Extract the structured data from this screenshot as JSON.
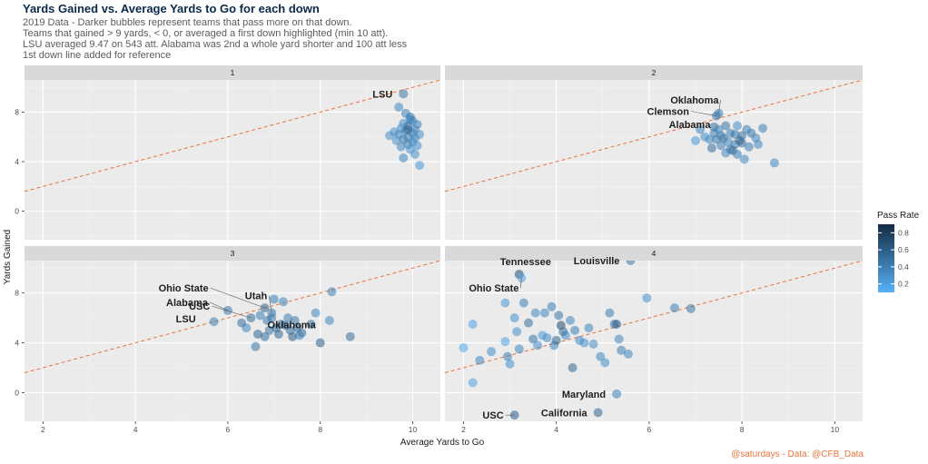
{
  "title": "Yards Gained vs. Average Yards to Go for each down",
  "subtitle": [
    "2019 Data - Darker bubbles represent teams that pass more on that down.",
    "Teams that gained > 9 yards, < 0, or averaged a first down highlighted (min 10 att).",
    "LSU averaged 9.47 on 543 att. Alabama was 2nd a whole yard shorter and 100 att less",
    "1st down line added for reference"
  ],
  "caption": "@saturdays - Data: @CFB_Data",
  "colors": {
    "dark": "#132B43",
    "light": "#56B1F7",
    "line": "#E8743B",
    "panel": "#EBEBEB",
    "strip": "#D9D9D9"
  },
  "chart_data": {
    "type": "scatter",
    "xlabel": "Average Yards to Go",
    "ylabel": "Yards Gained",
    "xlim": [
      1.6,
      10.6
    ],
    "ylim": [
      -2.3,
      10.6
    ],
    "x_ticks": [
      2,
      4,
      6,
      8,
      10
    ],
    "y_ticks": [
      0,
      4,
      8
    ],
    "reference_line": "y = x",
    "legend": {
      "title": "Pass Rate",
      "position": "right",
      "ticks": [
        0.2,
        0.4,
        0.6,
        0.8
      ],
      "range": [
        0.1,
        0.9
      ]
    },
    "facets": [
      {
        "strip": "1",
        "points": [
          {
            "x": 9.8,
            "y": 9.47,
            "pr": 0.45,
            "label": "LSU"
          },
          {
            "x": 9.7,
            "y": 8.4,
            "pr": 0.35
          },
          {
            "x": 9.85,
            "y": 7.9,
            "pr": 0.4
          },
          {
            "x": 9.95,
            "y": 7.6,
            "pr": 0.45
          },
          {
            "x": 10.0,
            "y": 7.3,
            "pr": 0.35
          },
          {
            "x": 9.8,
            "y": 7.1,
            "pr": 0.3
          },
          {
            "x": 10.1,
            "y": 7.0,
            "pr": 0.4
          },
          {
            "x": 9.9,
            "y": 6.9,
            "pr": 0.5
          },
          {
            "x": 9.75,
            "y": 6.7,
            "pr": 0.3
          },
          {
            "x": 10.05,
            "y": 6.6,
            "pr": 0.35
          },
          {
            "x": 9.85,
            "y": 6.5,
            "pr": 0.45
          },
          {
            "x": 9.6,
            "y": 6.4,
            "pr": 0.3
          },
          {
            "x": 10.0,
            "y": 6.3,
            "pr": 0.4
          },
          {
            "x": 9.7,
            "y": 6.2,
            "pr": 0.35
          },
          {
            "x": 10.15,
            "y": 6.2,
            "pr": 0.3
          },
          {
            "x": 9.5,
            "y": 6.1,
            "pr": 0.3
          },
          {
            "x": 9.9,
            "y": 6.0,
            "pr": 0.4
          },
          {
            "x": 10.05,
            "y": 5.9,
            "pr": 0.35
          },
          {
            "x": 9.8,
            "y": 5.8,
            "pr": 0.45
          },
          {
            "x": 9.65,
            "y": 5.7,
            "pr": 0.3
          },
          {
            "x": 10.0,
            "y": 5.6,
            "pr": 0.35
          },
          {
            "x": 9.9,
            "y": 5.4,
            "pr": 0.4
          },
          {
            "x": 10.1,
            "y": 5.3,
            "pr": 0.3
          },
          {
            "x": 9.75,
            "y": 5.2,
            "pr": 0.35
          },
          {
            "x": 9.95,
            "y": 5.0,
            "pr": 0.3
          },
          {
            "x": 10.05,
            "y": 4.6,
            "pr": 0.3
          },
          {
            "x": 9.8,
            "y": 4.3,
            "pr": 0.35
          },
          {
            "x": 10.15,
            "y": 3.7,
            "pr": 0.25
          },
          {
            "x": 9.9,
            "y": 6.6,
            "pr": 0.55
          },
          {
            "x": 9.95,
            "y": 7.4,
            "pr": 0.4
          }
        ]
      },
      {
        "strip": "2",
        "points": [
          {
            "x": 7.5,
            "y": 7.9,
            "pr": 0.4,
            "label": "Oklahoma"
          },
          {
            "x": 7.45,
            "y": 7.7,
            "pr": 0.45,
            "label": "Clemson"
          },
          {
            "x": 7.4,
            "y": 6.8,
            "pr": 0.5,
            "label": "Alabama"
          },
          {
            "x": 8.7,
            "y": 3.9,
            "pr": 0.35
          },
          {
            "x": 8.45,
            "y": 6.7,
            "pr": 0.4
          },
          {
            "x": 8.3,
            "y": 5.9,
            "pr": 0.35
          },
          {
            "x": 8.2,
            "y": 6.3,
            "pr": 0.45
          },
          {
            "x": 8.1,
            "y": 6.6,
            "pr": 0.4
          },
          {
            "x": 8.0,
            "y": 6.1,
            "pr": 0.5
          },
          {
            "x": 7.9,
            "y": 6.9,
            "pr": 0.3
          },
          {
            "x": 7.85,
            "y": 5.4,
            "pr": 0.45
          },
          {
            "x": 7.8,
            "y": 4.9,
            "pr": 0.55
          },
          {
            "x": 7.75,
            "y": 6.3,
            "pr": 0.4
          },
          {
            "x": 7.7,
            "y": 5.6,
            "pr": 0.35
          },
          {
            "x": 7.65,
            "y": 6.9,
            "pr": 0.45
          },
          {
            "x": 7.6,
            "y": 5.9,
            "pr": 0.5
          },
          {
            "x": 7.55,
            "y": 5.3,
            "pr": 0.4
          },
          {
            "x": 7.5,
            "y": 6.6,
            "pr": 0.35
          },
          {
            "x": 7.45,
            "y": 5.8,
            "pr": 0.45
          },
          {
            "x": 7.4,
            "y": 6.3,
            "pr": 0.4
          },
          {
            "x": 7.35,
            "y": 5.1,
            "pr": 0.5
          },
          {
            "x": 7.3,
            "y": 5.8,
            "pr": 0.35
          },
          {
            "x": 7.2,
            "y": 6.0,
            "pr": 0.3
          },
          {
            "x": 7.1,
            "y": 6.6,
            "pr": 0.35
          },
          {
            "x": 7.0,
            "y": 5.7,
            "pr": 0.25
          },
          {
            "x": 7.9,
            "y": 4.6,
            "pr": 0.4
          },
          {
            "x": 8.05,
            "y": 4.2,
            "pr": 0.35
          },
          {
            "x": 7.95,
            "y": 5.7,
            "pr": 0.6
          },
          {
            "x": 7.85,
            "y": 6.2,
            "pr": 0.45
          },
          {
            "x": 8.15,
            "y": 5.2,
            "pr": 0.4
          },
          {
            "x": 7.65,
            "y": 4.7,
            "pr": 0.35
          },
          {
            "x": 7.75,
            "y": 5.0,
            "pr": 0.45
          },
          {
            "x": 8.35,
            "y": 5.4,
            "pr": 0.35
          },
          {
            "x": 7.55,
            "y": 6.1,
            "pr": 0.4
          },
          {
            "x": 8.0,
            "y": 5.5,
            "pr": 0.5
          }
        ]
      },
      {
        "strip": "3",
        "points": [
          {
            "x": 6.8,
            "y": 6.8,
            "pr": 0.55,
            "label": "Ohio State"
          },
          {
            "x": 6.95,
            "y": 6.4,
            "pr": 0.45,
            "label": "Utah"
          },
          {
            "x": 6.5,
            "y": 6.0,
            "pr": 0.5,
            "label": "USC"
          },
          {
            "x": 6.0,
            "y": 6.6,
            "pr": 0.45,
            "label": "Alabama"
          },
          {
            "x": 5.7,
            "y": 5.7,
            "pr": 0.4,
            "label": "LSU"
          },
          {
            "x": 7.25,
            "y": 5.4,
            "pr": 0.55,
            "label": "Oklahoma"
          },
          {
            "x": 8.65,
            "y": 4.5,
            "pr": 0.5
          },
          {
            "x": 8.25,
            "y": 8.1,
            "pr": 0.4
          },
          {
            "x": 8.2,
            "y": 5.8,
            "pr": 0.35
          },
          {
            "x": 8.0,
            "y": 4.0,
            "pr": 0.6
          },
          {
            "x": 7.9,
            "y": 6.4,
            "pr": 0.35
          },
          {
            "x": 7.8,
            "y": 5.5,
            "pr": 0.45
          },
          {
            "x": 7.6,
            "y": 4.8,
            "pr": 0.5
          },
          {
            "x": 7.5,
            "y": 5.2,
            "pr": 0.55
          },
          {
            "x": 7.4,
            "y": 4.5,
            "pr": 0.6
          },
          {
            "x": 7.3,
            "y": 6.0,
            "pr": 0.4
          },
          {
            "x": 7.2,
            "y": 7.3,
            "pr": 0.35
          },
          {
            "x": 7.1,
            "y": 4.7,
            "pr": 0.55
          },
          {
            "x": 7.0,
            "y": 7.5,
            "pr": 0.4
          },
          {
            "x": 6.9,
            "y": 5.0,
            "pr": 0.45
          },
          {
            "x": 6.8,
            "y": 4.5,
            "pr": 0.5
          },
          {
            "x": 6.7,
            "y": 6.2,
            "pr": 0.4
          },
          {
            "x": 6.65,
            "y": 4.7,
            "pr": 0.55
          },
          {
            "x": 6.6,
            "y": 3.7,
            "pr": 0.45
          },
          {
            "x": 6.4,
            "y": 5.2,
            "pr": 0.35
          },
          {
            "x": 6.3,
            "y": 5.6,
            "pr": 0.5
          },
          {
            "x": 7.45,
            "y": 5.8,
            "pr": 0.45
          },
          {
            "x": 7.15,
            "y": 5.5,
            "pr": 0.5
          },
          {
            "x": 6.85,
            "y": 5.8,
            "pr": 0.45
          },
          {
            "x": 7.05,
            "y": 5.2,
            "pr": 0.55
          },
          {
            "x": 7.55,
            "y": 4.6,
            "pr": 0.4
          },
          {
            "x": 6.95,
            "y": 6.0,
            "pr": 0.45
          },
          {
            "x": 7.35,
            "y": 5.0,
            "pr": 0.5
          }
        ]
      },
      {
        "strip": "4",
        "points": [
          {
            "x": 3.2,
            "y": 9.5,
            "pr": 0.7,
            "label": "Tennessee"
          },
          {
            "x": 5.6,
            "y": 10.6,
            "pr": 0.45,
            "label": "Louisville"
          },
          {
            "x": 3.25,
            "y": 9.2,
            "pr": 0.2,
            "label": "Ohio State"
          },
          {
            "x": 5.3,
            "y": -0.1,
            "pr": 0.4,
            "label": "Maryland"
          },
          {
            "x": 4.9,
            "y": -1.6,
            "pr": 0.55,
            "label": "California"
          },
          {
            "x": 3.1,
            "y": -1.8,
            "pr": 0.6,
            "label": "USC"
          },
          {
            "x": 2.0,
            "y": 3.6,
            "pr": 0.15
          },
          {
            "x": 2.2,
            "y": 5.5,
            "pr": 0.2
          },
          {
            "x": 2.2,
            "y": 0.8,
            "pr": 0.2
          },
          {
            "x": 2.35,
            "y": 2.6,
            "pr": 0.35
          },
          {
            "x": 2.6,
            "y": 3.3,
            "pr": 0.3
          },
          {
            "x": 2.9,
            "y": 7.2,
            "pr": 0.25
          },
          {
            "x": 2.9,
            "y": 4.1,
            "pr": 0.2
          },
          {
            "x": 2.95,
            "y": 2.9,
            "pr": 0.4
          },
          {
            "x": 3.0,
            "y": 2.3,
            "pr": 0.3
          },
          {
            "x": 3.1,
            "y": 6.0,
            "pr": 0.3
          },
          {
            "x": 3.2,
            "y": 3.5,
            "pr": 0.35
          },
          {
            "x": 3.3,
            "y": 7.2,
            "pr": 0.4
          },
          {
            "x": 3.4,
            "y": 5.6,
            "pr": 0.5
          },
          {
            "x": 3.5,
            "y": 4.3,
            "pr": 0.45
          },
          {
            "x": 3.55,
            "y": 6.4,
            "pr": 0.35
          },
          {
            "x": 3.6,
            "y": 3.8,
            "pr": 0.3
          },
          {
            "x": 3.7,
            "y": 4.6,
            "pr": 0.25
          },
          {
            "x": 3.8,
            "y": 4.4,
            "pr": 0.3
          },
          {
            "x": 3.9,
            "y": 6.9,
            "pr": 0.4
          },
          {
            "x": 3.95,
            "y": 3.8,
            "pr": 0.35
          },
          {
            "x": 4.0,
            "y": 4.2,
            "pr": 0.55
          },
          {
            "x": 4.05,
            "y": 6.2,
            "pr": 0.45
          },
          {
            "x": 4.1,
            "y": 5.4,
            "pr": 0.7
          },
          {
            "x": 4.2,
            "y": 4.6,
            "pr": 0.3
          },
          {
            "x": 4.3,
            "y": 5.8,
            "pr": 0.35
          },
          {
            "x": 4.35,
            "y": 2.0,
            "pr": 0.55
          },
          {
            "x": 4.4,
            "y": 5.0,
            "pr": 0.4
          },
          {
            "x": 4.5,
            "y": 4.2,
            "pr": 0.35
          },
          {
            "x": 4.6,
            "y": 4.0,
            "pr": 0.3
          },
          {
            "x": 4.7,
            "y": 5.2,
            "pr": 0.35
          },
          {
            "x": 4.8,
            "y": 3.9,
            "pr": 0.3
          },
          {
            "x": 4.95,
            "y": 2.9,
            "pr": 0.35
          },
          {
            "x": 5.05,
            "y": 2.4,
            "pr": 0.3
          },
          {
            "x": 5.15,
            "y": 6.4,
            "pr": 0.4
          },
          {
            "x": 5.25,
            "y": 5.5,
            "pr": 0.45
          },
          {
            "x": 5.35,
            "y": 4.3,
            "pr": 0.35
          },
          {
            "x": 5.4,
            "y": 3.4,
            "pr": 0.4
          },
          {
            "x": 5.55,
            "y": 3.1,
            "pr": 0.35
          },
          {
            "x": 5.95,
            "y": 7.6,
            "pr": 0.3
          },
          {
            "x": 6.55,
            "y": 6.8,
            "pr": 0.4
          },
          {
            "x": 6.9,
            "y": 6.75,
            "pr": 0.45
          },
          {
            "x": 3.15,
            "y": 4.9,
            "pr": 0.3
          },
          {
            "x": 4.15,
            "y": 4.9,
            "pr": 0.5
          },
          {
            "x": 3.75,
            "y": 6.4,
            "pr": 0.35
          },
          {
            "x": 5.3,
            "y": 5.5,
            "pr": 0.6
          }
        ]
      }
    ]
  }
}
